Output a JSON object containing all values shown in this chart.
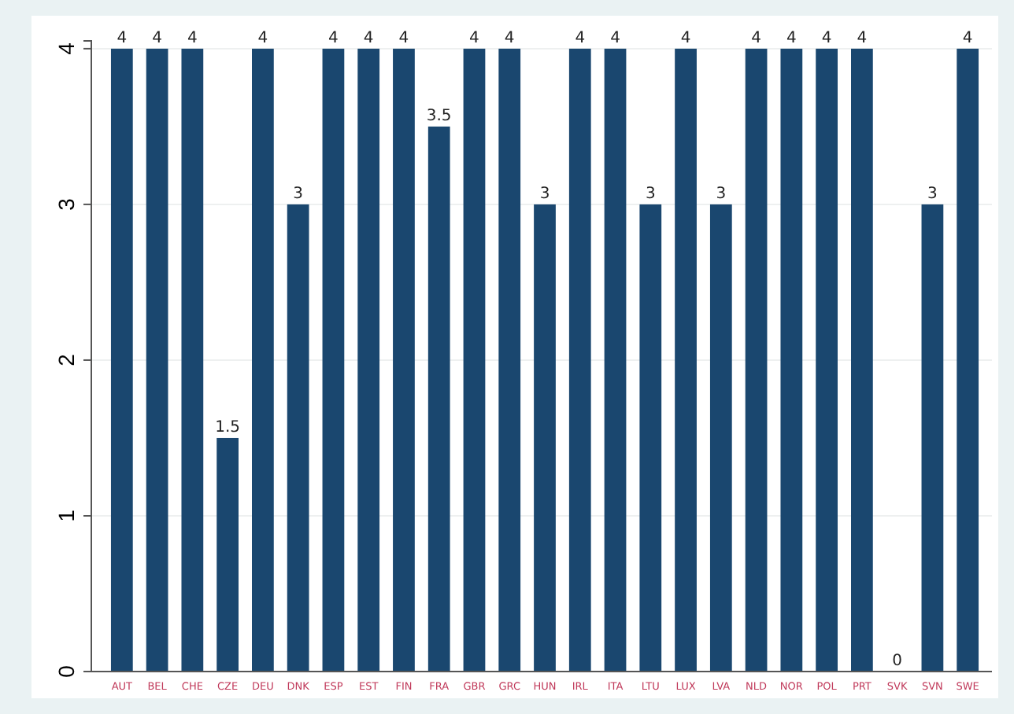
{
  "chart_data": {
    "type": "bar",
    "categories": [
      "AUT",
      "BEL",
      "CHE",
      "CZE",
      "DEU",
      "DNK",
      "ESP",
      "EST",
      "FIN",
      "FRA",
      "GBR",
      "GRC",
      "HUN",
      "IRL",
      "ITA",
      "LTU",
      "LUX",
      "LVA",
      "NLD",
      "NOR",
      "POL",
      "PRT",
      "SVK",
      "SVN",
      "SWE"
    ],
    "values": [
      4,
      4,
      4,
      1.5,
      4,
      3,
      4,
      4,
      4,
      3.5,
      4,
      4,
      3,
      4,
      4,
      3,
      4,
      3,
      4,
      4,
      4,
      4,
      0,
      3,
      4
    ],
    "color": "#1a476f",
    "ylim": [
      0,
      4.05
    ],
    "yticks": [
      0,
      1,
      2,
      3,
      4
    ],
    "grid": "y",
    "data_labels": true
  }
}
